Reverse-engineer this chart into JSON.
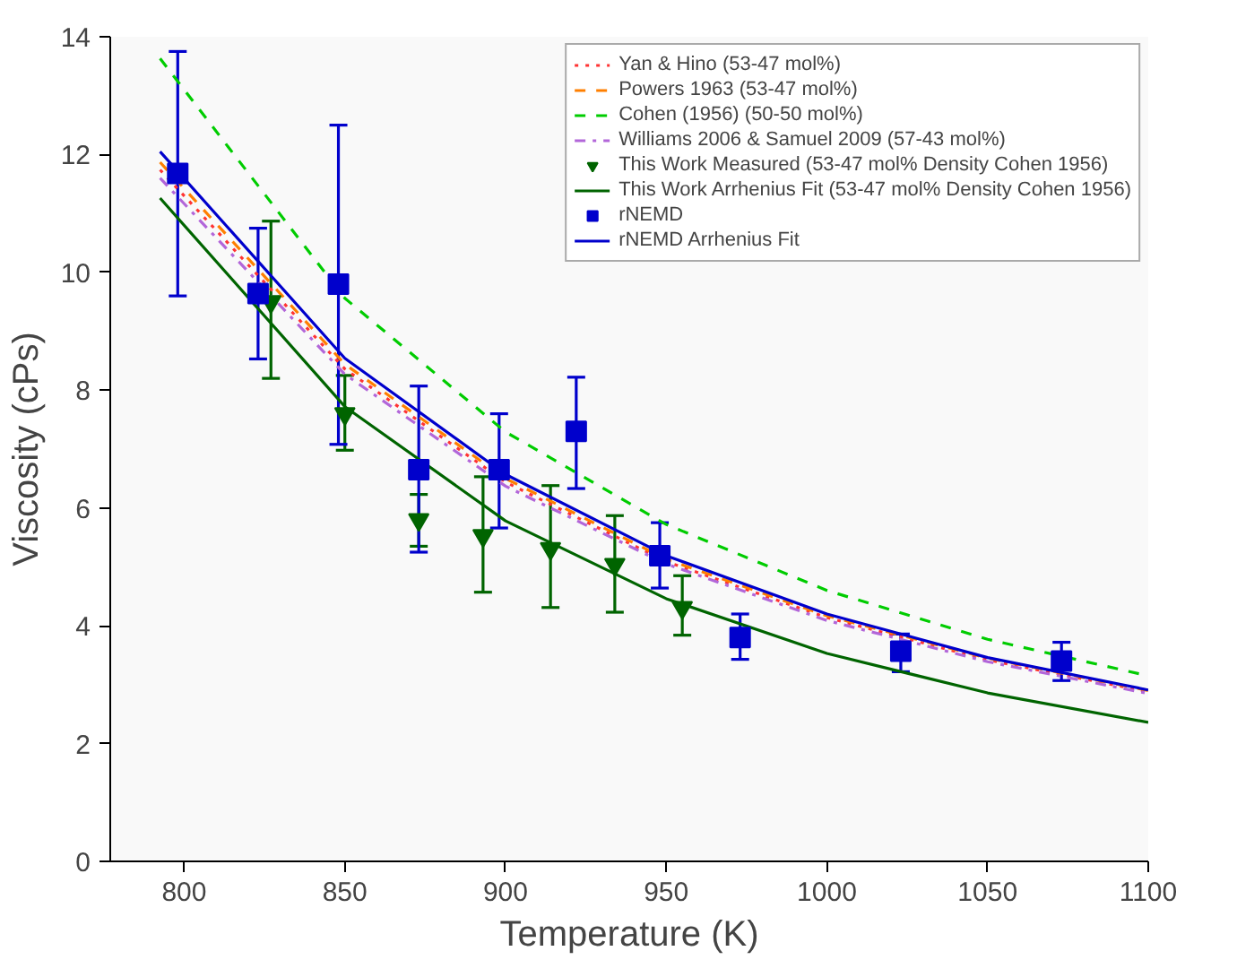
{
  "chart_data": {
    "type": "line",
    "xlabel": "Temperature (K)",
    "ylabel": "Viscosity (cPs)",
    "xlim": [
      777,
      1100
    ],
    "ylim": [
      0,
      14
    ],
    "xticks": [
      800,
      850,
      900,
      950,
      1000,
      1050,
      1100
    ],
    "yticks": [
      0,
      2,
      4,
      6,
      8,
      10,
      12,
      14
    ],
    "grid": false,
    "legend": "top right",
    "series": [
      {
        "name": "Yan & Hino (53-47 mol%)",
        "color": "#ff3333",
        "line_style": "dotted",
        "x": [
          792.5,
          850,
          900,
          950,
          1000,
          1050,
          1100
        ],
        "values": [
          11.74,
          8.36,
          6.44,
          5.09,
          4.14,
          3.42,
          2.88
        ]
      },
      {
        "name": "Powers 1963 (53-47 mol%)",
        "color": "#ff7f00",
        "line_style": "dashed",
        "x": [
          792.5,
          850,
          900,
          950,
          1000,
          1050,
          1100
        ],
        "values": [
          11.87,
          8.44,
          6.5,
          5.13,
          4.17,
          3.45,
          2.9
        ]
      },
      {
        "name": "Cohen (1956) (50-50 mol%)",
        "color": "#00cc00",
        "line_style": "dashed",
        "x": [
          792.5,
          850,
          900,
          950,
          1000,
          1050,
          1100
        ],
        "values": [
          13.63,
          9.56,
          7.29,
          5.72,
          4.6,
          3.77,
          3.15
        ]
      },
      {
        "name": "Williams 2006 & Samuel 2009 (57-43 mol%)",
        "color": "#b266d9",
        "line_style": "dashdot",
        "x": [
          792.5,
          850,
          900,
          950,
          1000,
          1050,
          1100
        ],
        "values": [
          11.6,
          8.27,
          6.37,
          5.05,
          4.09,
          3.39,
          2.85
        ]
      },
      {
        "name": "This Work Measured (53-47 mol% Density Cohen 1956)",
        "color": "#006400",
        "type": "scatter",
        "marker": "triangle",
        "x": [
          827,
          850,
          873,
          893,
          914,
          934,
          955
        ],
        "values": [
          9.5,
          7.6,
          5.8,
          5.53,
          5.31,
          5.04,
          4.31
        ],
        "errors": [
          [
            8.2,
            10.87
          ],
          [
            6.98,
            8.25
          ],
          [
            5.35,
            6.23
          ],
          [
            4.57,
            6.53
          ],
          [
            4.31,
            6.38
          ],
          [
            4.23,
            5.87
          ],
          [
            3.84,
            4.85
          ]
        ]
      },
      {
        "name": "This Work Arrhenius Fit (53-47 mol% Density Cohen 1956)",
        "color": "#006400",
        "line_style": "solid",
        "x": [
          792.5,
          850,
          900,
          950,
          1000,
          1050,
          1100
        ],
        "values": [
          11.26,
          7.72,
          5.78,
          4.46,
          3.53,
          2.86,
          2.36
        ]
      },
      {
        "name": "rNEMD",
        "color": "#0000cc",
        "type": "scatter",
        "marker": "square",
        "x": [
          798,
          823,
          848,
          873,
          898,
          922,
          948,
          973,
          1023,
          1073
        ],
        "values": [
          11.68,
          9.64,
          9.8,
          6.65,
          6.65,
          7.3,
          5.19,
          3.8,
          3.57,
          3.4
        ],
        "errors": [
          [
            9.6,
            13.75
          ],
          [
            8.53,
            10.75
          ],
          [
            7.08,
            12.5
          ],
          [
            5.25,
            8.07
          ],
          [
            5.66,
            7.6
          ],
          [
            6.33,
            8.22
          ],
          [
            4.64,
            5.75
          ],
          [
            3.43,
            4.2
          ],
          [
            3.22,
            3.86
          ],
          [
            3.07,
            3.72
          ]
        ]
      },
      {
        "name": "rNEMD Arrhenius Fit",
        "color": "#0000cc",
        "line_style": "solid",
        "x": [
          792.5,
          850,
          900,
          950,
          1000,
          1050,
          1100
        ],
        "values": [
          12.05,
          8.54,
          6.57,
          5.19,
          4.2,
          3.46,
          2.91
        ]
      }
    ]
  }
}
